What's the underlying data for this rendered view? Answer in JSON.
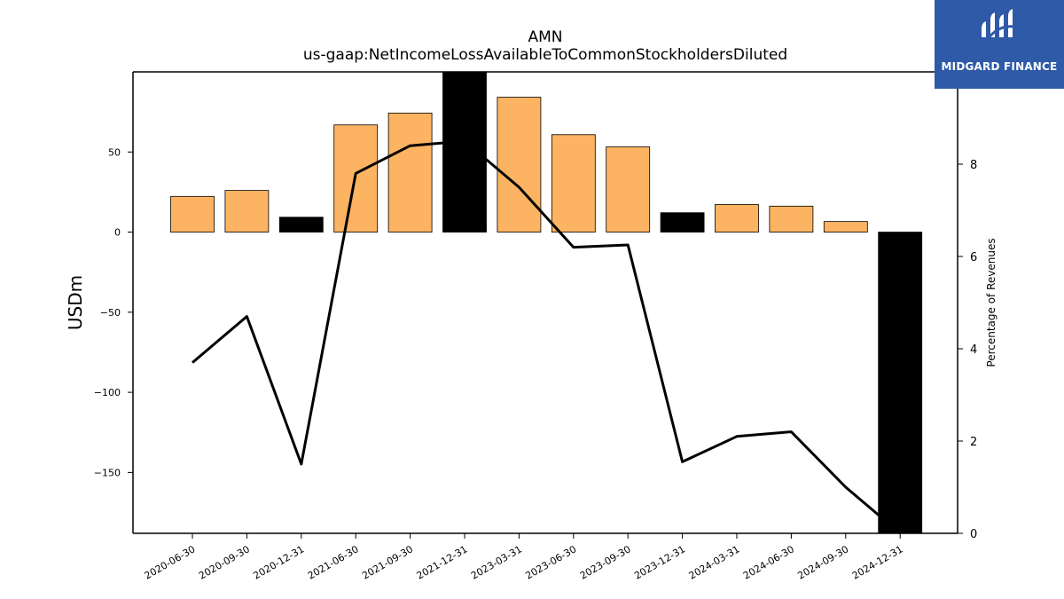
{
  "header": {
    "title": "AMN",
    "subtitle": "us-gaap:NetIncomeLossAvailableToCommonStockholdersDiluted"
  },
  "logo": {
    "text": "MIDGARD FINANCE",
    "icon": "midgard-logo-icon",
    "color": "#2f5aa8"
  },
  "chart_data": {
    "type": "bar",
    "title": "AMN",
    "subtitle": "us-gaap:NetIncomeLossAvailableToCommonStockholdersDiluted",
    "ylabel": "USDm",
    "y2label": "Percentage of Revenues",
    "ylim": [
      -188,
      100
    ],
    "y_ticks": [
      50,
      0,
      -50,
      -100,
      -150
    ],
    "y_tick_labels": [
      "50",
      "0",
      "−50",
      "−100",
      "−150"
    ],
    "y2lim": [
      0,
      10
    ],
    "y2_ticks": [
      0,
      2,
      4,
      6,
      8
    ],
    "y2_tick_labels": [
      "0",
      "2",
      "4",
      "6",
      "8"
    ],
    "categories": [
      "2020-06-30",
      "2020-09-30",
      "2020-12-31",
      "2021-06-30",
      "2021-09-30",
      "2021-12-31",
      "2023-03-31",
      "2023-06-30",
      "2023-09-30",
      "2023-12-31",
      "2024-03-31",
      "2024-06-30",
      "2024-09-30",
      "2024-12-31"
    ],
    "series": [
      {
        "values": [
          22.3,
          26.0,
          9.3,
          66.9,
          74.3,
          100.0,
          84.2,
          60.8,
          53.2,
          12.1,
          17.2,
          16.2,
          6.6,
          -188.0
        ],
        "highlight": [
          false,
          false,
          true,
          false,
          false,
          true,
          false,
          false,
          false,
          true,
          false,
          false,
          false,
          true
        ]
      },
      {
        "axis": "right",
        "values": [
          3.7,
          4.7,
          1.5,
          7.8,
          8.4,
          8.5,
          7.5,
          6.2,
          6.25,
          1.55,
          2.1,
          2.2,
          1.0,
          0
        ]
      }
    ],
    "colors": {
      "bar": "#fdb462",
      "bar_highlight": "#000000",
      "line": "#000000"
    },
    "grid": false
  }
}
